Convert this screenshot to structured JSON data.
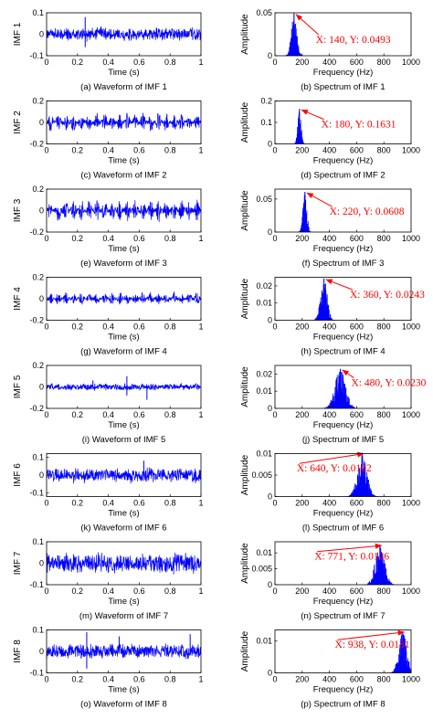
{
  "colors": {
    "signal": "#0000ff",
    "annotation": "#ff0000",
    "axis": "#000000"
  },
  "chart_data": [
    {
      "type": "line",
      "label": "IMF 1",
      "xlabel": "Time (s)",
      "xlim": [
        0,
        1
      ],
      "ylim": [
        -0.1,
        0.1
      ],
      "xticks": [
        "0",
        "0.2",
        "0.4",
        "0.6",
        "0.8",
        "1"
      ],
      "yticks": [
        "-0.1",
        "0",
        "0.1"
      ],
      "amplitude": 0.04,
      "burst_freq": 0,
      "spikes": [
        [
          0.25,
          0.08
        ],
        [
          0.25,
          -0.06
        ]
      ],
      "caption": "(a) Waveform of IMF 1"
    },
    {
      "type": "bar",
      "label": "Amplitude",
      "xlabel": "Frequency (Hz)",
      "xlim": [
        0,
        1000
      ],
      "ylim": [
        0,
        0.05
      ],
      "xticks": [
        "0",
        "200",
        "400",
        "600",
        "800",
        "1000"
      ],
      "yticks": [
        "0",
        "0.05"
      ],
      "peak": {
        "x": 140,
        "y": 0.0493
      },
      "spread": 40,
      "annotation": "X: 140, Y: 0.0493",
      "ann_pos": [
        0.3,
        0.7
      ],
      "caption": "(b) Spectrum of IMF 1"
    },
    {
      "type": "line",
      "label": "IMF 2",
      "xlabel": "Time (s)",
      "xlim": [
        0,
        1
      ],
      "ylim": [
        -0.2,
        0.2
      ],
      "xticks": [
        "0",
        "0.2",
        "0.4",
        "0.6",
        "0.8",
        "1"
      ],
      "yticks": [
        "-0.2",
        "0",
        "0.2"
      ],
      "amplitude": 0.1,
      "burst_freq": 20,
      "spikes": [],
      "caption": "(c) Waveform of IMF 2"
    },
    {
      "type": "bar",
      "label": "Amplitude",
      "xlabel": "Frequency (Hz)",
      "xlim": [
        0,
        1000
      ],
      "ylim": [
        0,
        0.2
      ],
      "xticks": [
        "0",
        "200",
        "400",
        "600",
        "800",
        "1000"
      ],
      "yticks": [
        "0",
        "0.1",
        "0.2"
      ],
      "peak": {
        "x": 180,
        "y": 0.1631
      },
      "spread": 25,
      "annotation": "X: 180, Y: 0.1631",
      "ann_pos": [
        0.34,
        0.62
      ],
      "caption": "(d) Spectrum of IMF 2"
    },
    {
      "type": "line",
      "label": "IMF 3",
      "xlabel": "Time (s)",
      "xlim": [
        0,
        1
      ],
      "ylim": [
        -0.2,
        0.2
      ],
      "xticks": [
        "0",
        "0.2",
        "0.4",
        "0.6",
        "0.8",
        "1"
      ],
      "yticks": [
        "-0.2",
        "0",
        "0.2"
      ],
      "amplitude": 0.12,
      "burst_freq": 20,
      "spikes": [],
      "caption": "(e) Waveform of IMF 3"
    },
    {
      "type": "bar",
      "label": "Amplitude",
      "xlabel": "Frequency (Hz)",
      "xlim": [
        0,
        1000
      ],
      "ylim": [
        0,
        0.065
      ],
      "xticks": [
        "0",
        "200",
        "400",
        "600",
        "800",
        "1000"
      ],
      "yticks": [
        "0",
        "0.05"
      ],
      "peak": {
        "x": 220,
        "y": 0.0608
      },
      "spread": 30,
      "annotation": "X: 220, Y: 0.0608",
      "ann_pos": [
        0.4,
        0.6
      ],
      "caption": "(f) Spectrum of IMF 3"
    },
    {
      "type": "line",
      "label": "IMF 4",
      "xlabel": "Time (s)",
      "xlim": [
        0,
        1
      ],
      "ylim": [
        -0.2,
        0.2
      ],
      "xticks": [
        "0",
        "0.2",
        "0.4",
        "0.6",
        "0.8",
        "1"
      ],
      "yticks": [
        "-0.2",
        "0",
        "0.2"
      ],
      "amplitude": 0.07,
      "burst_freq": 20,
      "spikes": [],
      "caption": "(g) Waveform of IMF 4"
    },
    {
      "type": "bar",
      "label": "Amplitude",
      "xlabel": "Frequency (Hz)",
      "xlim": [
        0,
        1000
      ],
      "ylim": [
        0,
        0.025
      ],
      "xticks": [
        "0",
        "200",
        "400",
        "600",
        "800",
        "1000"
      ],
      "yticks": [
        "0",
        "0.01",
        "0.02"
      ],
      "peak": {
        "x": 360,
        "y": 0.0243
      },
      "spread": 50,
      "annotation": "X: 360, Y: 0.0243",
      "ann_pos": [
        0.55,
        0.48
      ],
      "caption": "(h) Spectrum of IMF 4"
    },
    {
      "type": "line",
      "label": "IMF 5",
      "xlabel": "Time (s)",
      "xlim": [
        0,
        1
      ],
      "ylim": [
        -0.2,
        0.2
      ],
      "xticks": [
        "0",
        "0.2",
        "0.4",
        "0.6",
        "0.8",
        "1"
      ],
      "yticks": [
        "-0.2",
        "0",
        "0.2"
      ],
      "amplitude": 0.04,
      "burst_freq": 0,
      "spikes": [
        [
          0.52,
          0.1
        ],
        [
          0.52,
          -0.08
        ],
        [
          0.65,
          -0.12
        ],
        [
          0.3,
          0.06
        ]
      ],
      "caption": "(i) Waveform of IMF 5"
    },
    {
      "type": "bar",
      "label": "Amplitude",
      "xlabel": "Frequency (Hz)",
      "xlim": [
        0,
        1000
      ],
      "ylim": [
        0,
        0.025
      ],
      "xticks": [
        "0",
        "200",
        "400",
        "600",
        "800",
        "1000"
      ],
      "yticks": [
        "0",
        "0.01",
        "0.02"
      ],
      "peak": {
        "x": 480,
        "y": 0.023
      },
      "spread": 80,
      "annotation": "X: 480, Y: 0.0230",
      "ann_pos": [
        0.56,
        0.48
      ],
      "caption": "(j) Spectrum of IMF 5"
    },
    {
      "type": "line",
      "label": "IMF 6",
      "xlabel": "Time (s)",
      "xlim": [
        0,
        1
      ],
      "ylim": [
        -0.12,
        0.12
      ],
      "xticks": [
        "0",
        "0.2",
        "0.4",
        "0.6",
        "0.8",
        "1"
      ],
      "yticks": [
        "-0.1",
        "0",
        "0.1"
      ],
      "amplitude": 0.05,
      "burst_freq": 0,
      "spikes": [
        [
          0.63,
          0.08
        ]
      ],
      "caption": "(k) Waveform of IMF 6"
    },
    {
      "type": "bar",
      "label": "Amplitude",
      "xlabel": "Frequency (Hz)",
      "xlim": [
        0,
        1000
      ],
      "ylim": [
        0,
        0.01
      ],
      "xticks": [
        "0",
        "200",
        "400",
        "600",
        "800",
        "1000"
      ],
      "yticks": [
        "0",
        "0.005",
        "0.01"
      ],
      "peak": {
        "x": 640,
        "y": 0.0102
      },
      "spread": 70,
      "annotation": "X: 640, Y: 0.0102",
      "ann_pos": [
        0.16,
        0.42
      ],
      "caption": "(l) Spectrum of IMF 6"
    },
    {
      "type": "line",
      "label": "IMF 7",
      "xlabel": "Time (s)",
      "xlim": [
        0,
        1
      ],
      "ylim": [
        -0.1,
        0.1
      ],
      "xticks": [
        "0",
        "0.2",
        "0.4",
        "0.6",
        "0.8",
        "1"
      ],
      "yticks": [
        "-0.1",
        "0",
        "0.1"
      ],
      "amplitude": 0.06,
      "burst_freq": 0,
      "spikes": [],
      "caption": "(m) Waveform of IMF 7"
    },
    {
      "type": "bar",
      "label": "Amplitude",
      "xlabel": "Frequency (Hz)",
      "xlim": [
        0,
        1000
      ],
      "ylim": [
        0,
        0.0135
      ],
      "xticks": [
        "0",
        "200",
        "400",
        "600",
        "800",
        "1000"
      ],
      "yticks": [
        "0",
        "0.005",
        "0.01"
      ],
      "peak": {
        "x": 771,
        "y": 0.0126
      },
      "spread": 70,
      "annotation": "X: 771, Y: 0.0126",
      "ann_pos": [
        0.29,
        0.42
      ],
      "caption": "(n) Spectrum of IMF 7"
    },
    {
      "type": "line",
      "label": "IMF 8",
      "xlabel": "Time (s)",
      "xlim": [
        0,
        1
      ],
      "ylim": [
        -0.1,
        0.1
      ],
      "xticks": [
        "0",
        "0.2",
        "0.4",
        "0.6",
        "0.8",
        "1"
      ],
      "yticks": [
        "-0.1",
        "0",
        "0.1"
      ],
      "amplitude": 0.045,
      "burst_freq": 0,
      "spikes": [
        [
          0.26,
          0.09
        ],
        [
          0.26,
          -0.08
        ],
        [
          0.47,
          0.07
        ],
        [
          0.93,
          0.08
        ]
      ],
      "caption": "(o) Waveform of IMF 8"
    },
    {
      "type": "bar",
      "label": "Amplitude",
      "xlabel": "Frequency (Hz)",
      "xlim": [
        0,
        1000
      ],
      "ylim": [
        0,
        0.0135
      ],
      "xticks": [
        "0",
        "200",
        "400",
        "600",
        "800",
        "1000"
      ],
      "yticks": [
        "0",
        "0.01"
      ],
      "peak": {
        "x": 938,
        "y": 0.0131
      },
      "spread": 60,
      "annotation": "X: 938, Y: 0.0131",
      "ann_pos": [
        0.44,
        0.42
      ],
      "caption": "(p) Spectrum of IMF 8"
    }
  ]
}
